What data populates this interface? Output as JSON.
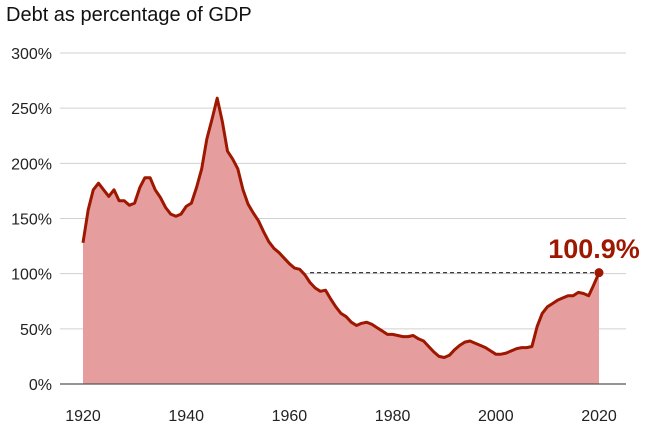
{
  "chart_data": {
    "type": "area",
    "title": "Debt as percentage of GDP",
    "xlabel": "",
    "ylabel": "",
    "ylim": [
      0,
      300
    ],
    "xlim": [
      1920,
      2020
    ],
    "yticks": [
      0,
      50,
      100,
      150,
      200,
      250,
      300
    ],
    "ytick_labels": [
      "0%",
      "50%",
      "100%",
      "150%",
      "200%",
      "250%",
      "300%"
    ],
    "xticks": [
      1920,
      1940,
      1960,
      1980,
      2000,
      2020
    ],
    "xtick_labels": [
      "1920",
      "1940",
      "1960",
      "1980",
      "2000",
      "2020"
    ],
    "grid": true,
    "x_start": 1920,
    "values": [
      128,
      158,
      176,
      182,
      176,
      170,
      176,
      166,
      166,
      162,
      164,
      178,
      187,
      187,
      176,
      169,
      160,
      154,
      152,
      154,
      161,
      164,
      178,
      195,
      222,
      240,
      259,
      238,
      211,
      204,
      195,
      176,
      163,
      155,
      148,
      138,
      129,
      123,
      119,
      114,
      109,
      105,
      104,
      99,
      92,
      87,
      84,
      85,
      77,
      70,
      64,
      61,
      56,
      53,
      55,
      56,
      54,
      51,
      48,
      45,
      45,
      44,
      43,
      43,
      44,
      41,
      39,
      34,
      29,
      25,
      24,
      26,
      31,
      35,
      38,
      39,
      37,
      35,
      33,
      30,
      27,
      27,
      28,
      30,
      32,
      33,
      33,
      34,
      52,
      64,
      70,
      73,
      76,
      78,
      80,
      80,
      83,
      82,
      80,
      90,
      100.9
    ],
    "annotation": {
      "text": "100.9%",
      "x": 2020,
      "y": 100.9,
      "reference_line_from": 1964
    },
    "colors": {
      "line": "#9e1700",
      "fill": "#e59d9e",
      "label": "#9e1700",
      "grid": "#d0d0d0",
      "axis": "#555555"
    }
  }
}
